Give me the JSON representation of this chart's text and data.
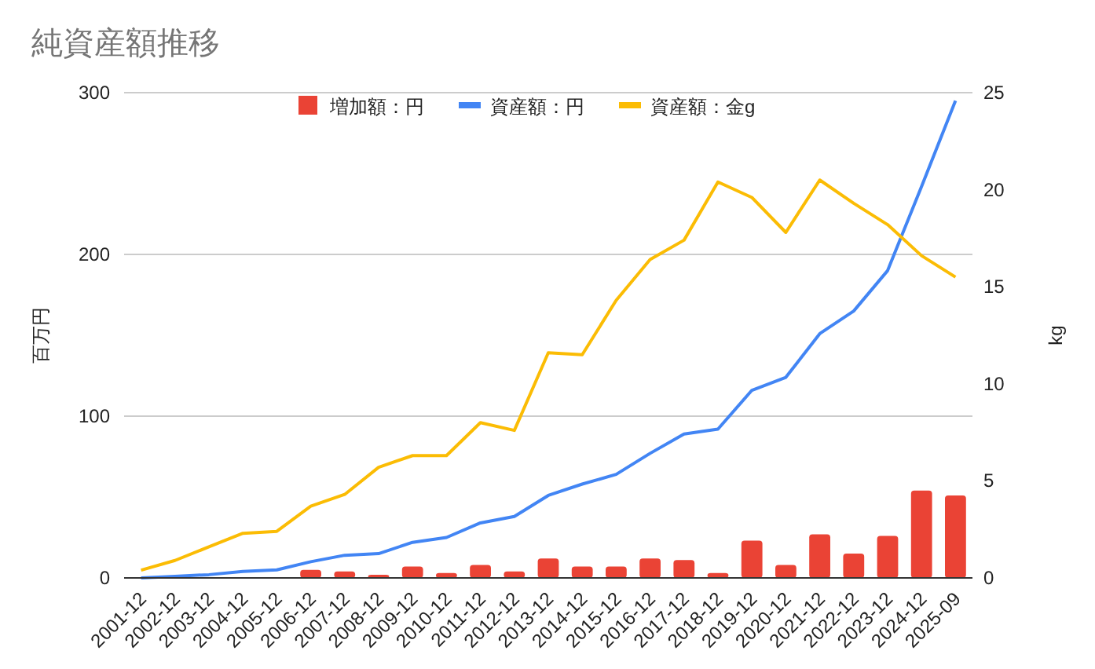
{
  "chart_data": {
    "type": "bar",
    "title": "純資産額推移",
    "ylabel": "百万円",
    "y2label": "kg",
    "categories": [
      "2001-12",
      "2002-12",
      "2003-12",
      "2004-12",
      "2005-12",
      "2006-12",
      "2007-12",
      "2008-12",
      "2009-12",
      "2010-12",
      "2011-12",
      "2012-12",
      "2013-12",
      "2014-12",
      "2015-12",
      "2016-12",
      "2017-12",
      "2018-12",
      "2019-12",
      "2020-12",
      "2021-12",
      "2022-12",
      "2023-12",
      "2024-12",
      "2025-09"
    ],
    "series": [
      {
        "name": "増加額：円",
        "color": "#ea4335",
        "values": [
          0,
          0,
          0,
          0,
          0,
          5,
          4,
          2,
          7,
          3,
          8,
          4,
          12,
          7,
          7,
          12,
          11,
          3,
          23,
          8,
          27,
          15,
          26,
          54,
          51
        ]
      },
      {
        "name": "資産額：円",
        "type": "line",
        "color": "#4285f4",
        "values": [
          0,
          1,
          2,
          4,
          5,
          10,
          14,
          15,
          22,
          25,
          34,
          38,
          51,
          58,
          64,
          77,
          89,
          92,
          116,
          124,
          151,
          165,
          190,
          242,
          295
        ]
      },
      {
        "name": "資産額：金g",
        "type": "line",
        "axis": "y2",
        "color": "#fbbc04",
        "values": [
          0.4,
          0.9,
          1.6,
          2.3,
          2.4,
          3.7,
          4.3,
          5.7,
          6.3,
          6.3,
          8,
          7.6,
          11.6,
          11.5,
          14.3,
          16.4,
          17.4,
          20.4,
          19.6,
          17.8,
          20.5,
          19.3,
          18.2,
          16.6,
          15.5
        ]
      }
    ],
    "ylim": [
      0,
      300
    ],
    "yticks": [
      0,
      100,
      200,
      300
    ],
    "y2lim": [
      0,
      25
    ],
    "y2ticks": [
      0,
      5,
      10,
      15,
      20,
      25
    ],
    "grid": "y",
    "legend": "top"
  }
}
